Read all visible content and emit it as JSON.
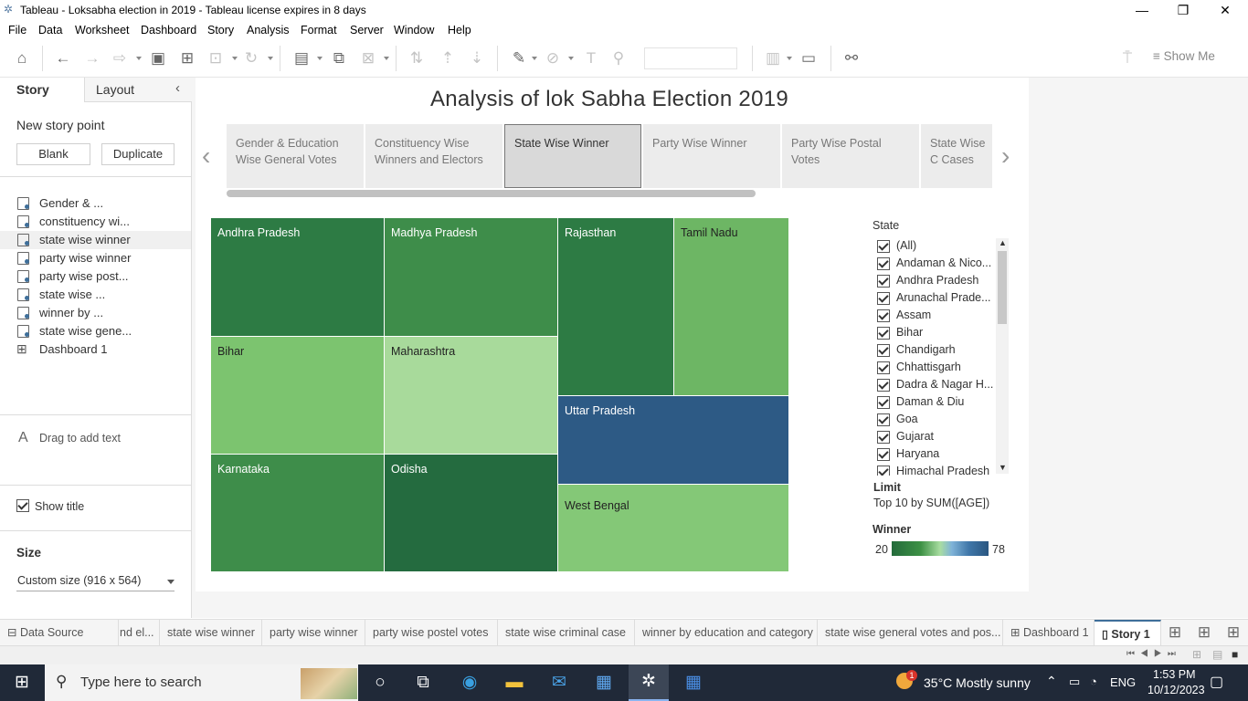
{
  "window": {
    "title": "Tableau - Loksabha election in 2019 - Tableau license expires in 8 days",
    "minimize": "—",
    "maximize": "❐",
    "close": "✕"
  },
  "menu": [
    "File",
    "Data",
    "Worksheet",
    "Dashboard",
    "Story",
    "Analysis",
    "Format",
    "Server",
    "Window",
    "Help"
  ],
  "toolbar": {
    "show_me": "Show Me"
  },
  "left_pane": {
    "tabs": {
      "story": "Story",
      "layout": "Layout"
    },
    "new_story_point": "New story point",
    "blank": "Blank",
    "duplicate": "Duplicate",
    "sheets": [
      {
        "label": "Gender & ..."
      },
      {
        "label": "constituency wi..."
      },
      {
        "label": "state wise winner"
      },
      {
        "label": "party wise winner"
      },
      {
        "label": "party wise post..."
      },
      {
        "label": "state wise ..."
      },
      {
        "label": "winner by ..."
      },
      {
        "label": "state wise gene..."
      },
      {
        "label": "Dashboard 1"
      }
    ],
    "drag_text": "Drag to add text",
    "show_title": "Show title",
    "size_label": "Size",
    "size_value": "Custom size (916 x 564)"
  },
  "story": {
    "title": "Analysis of lok Sabha Election 2019",
    "points": [
      "Gender & Education Wise General Votes",
      "Constituency Wise Winners and Electors",
      "State Wise Winner",
      "Party Wise Winner",
      "Party Wise Postal Votes",
      "State Wise C Cases"
    ],
    "active_point": "State Wise Winner"
  },
  "treemap": {
    "tiles": [
      {
        "state": "Andhra Pradesh",
        "winner": 25
      },
      {
        "state": "Madhya Pradesh",
        "winner": 29
      },
      {
        "state": "Rajasthan",
        "winner": 25
      },
      {
        "state": "Tamil Nadu",
        "winner": 38
      },
      {
        "state": "Bihar",
        "winner": 40
      },
      {
        "state": "Maharashtra",
        "winner": 48
      },
      {
        "state": "Uttar Pradesh",
        "winner": 78
      },
      {
        "state": "Karnataka",
        "winner": 28
      },
      {
        "state": "Odisha",
        "winner": 21
      },
      {
        "state": "West Bengal",
        "winner": 42
      }
    ],
    "colors": {
      "Andhra Pradesh": "#2d7b44",
      "Madhya Pradesh": "#3e8d4a",
      "Rajasthan": "#2d7b44",
      "Tamil Nadu": "#6db664",
      "Bihar": "#7cc46f",
      "Maharashtra": "#a8da9b",
      "Uttar Pradesh": "#2d5a85",
      "Karnataka": "#3e8d4a",
      "Odisha": "#246b3f",
      "West Bengal": "#84c877"
    }
  },
  "filter": {
    "title": "State",
    "items": [
      "(All)",
      "Andaman & Nico...",
      "Andhra Pradesh",
      "Arunachal Prade...",
      "Assam",
      "Bihar",
      "Chandigarh",
      "Chhattisgarh",
      "Dadra & Nagar H...",
      "Daman & Diu",
      "Goa",
      "Gujarat",
      "Haryana",
      "Himachal Pradesh"
    ]
  },
  "limit": {
    "title": "Limit",
    "value": "Top 10 by SUM([AGE])"
  },
  "color_legend": {
    "title": "Winner",
    "min": "20",
    "max": "78"
  },
  "sheet_tabs": [
    {
      "label": "Data Source"
    },
    {
      "label": "nd el..."
    },
    {
      "label": "state wise winner"
    },
    {
      "label": "party wise winner"
    },
    {
      "label": "party wise postel votes"
    },
    {
      "label": "state wise criminal case"
    },
    {
      "label": "winner by education and category"
    },
    {
      "label": "state wise general votes and pos..."
    },
    {
      "label": "Dashboard 1"
    },
    {
      "label": "Story 1"
    }
  ],
  "taskbar": {
    "search_placeholder": "Type here to search",
    "weather": "35°C  Mostly sunny",
    "lang": "ENG",
    "time": "1:53 PM",
    "date": "10/12/2023",
    "mail_badge": "1"
  }
}
